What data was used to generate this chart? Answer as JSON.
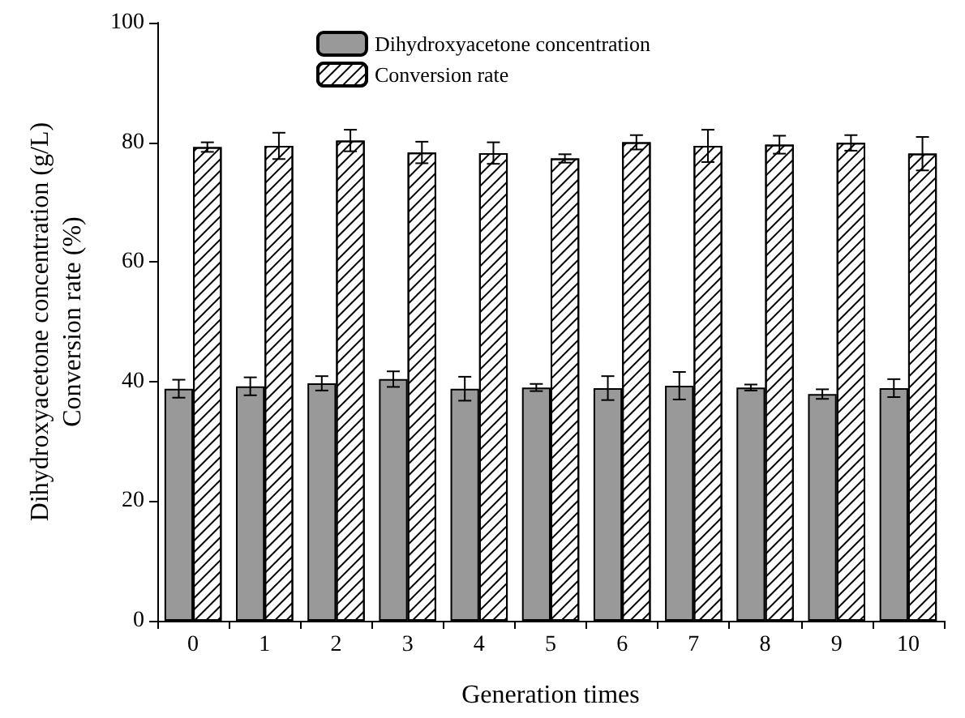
{
  "chart_data": {
    "type": "bar",
    "xlabel": "Generation times",
    "ylabel": "Dihydroxyacetone concentration (g/L)\nConversion rate (%)",
    "categories": [
      "0",
      "1",
      "2",
      "3",
      "4",
      "5",
      "6",
      "7",
      "8",
      "9",
      "10"
    ],
    "series": [
      {
        "name": "Dihydroxyacetone concentration",
        "color": "#999999",
        "values": [
          38.8,
          39.2,
          39.7,
          40.4,
          38.8,
          39.0,
          38.9,
          39.3,
          39.0,
          37.9,
          38.9
        ],
        "errors": [
          1.5,
          1.5,
          1.2,
          1.3,
          2.0,
          0.6,
          2.0,
          2.3,
          0.5,
          0.8,
          1.5
        ]
      },
      {
        "name": "Conversion rate",
        "color": "#ffffff",
        "values": [
          79.2,
          79.4,
          80.3,
          78.3,
          78.2,
          77.3,
          80.0,
          79.4,
          79.6,
          79.9,
          78.1
        ],
        "errors": [
          0.8,
          2.2,
          1.8,
          1.8,
          1.8,
          0.7,
          1.2,
          2.7,
          1.5,
          1.3,
          2.8
        ]
      }
    ],
    "ylim": [
      0,
      100
    ],
    "yticks": [
      0,
      20,
      40,
      60,
      80,
      100
    ],
    "grid": false,
    "legend": "top"
  }
}
